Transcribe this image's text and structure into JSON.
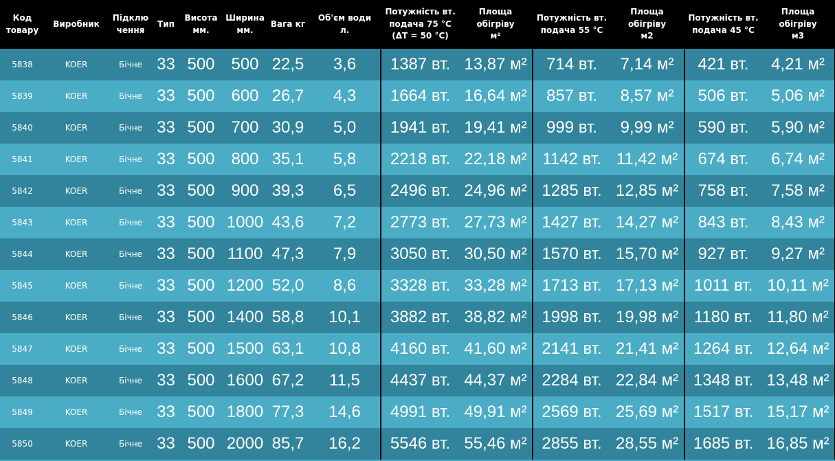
{
  "headers": [
    [
      "Код",
      "товару"
    ],
    [
      "Виробник"
    ],
    [
      "Підклю",
      "чення"
    ],
    [
      "Тип"
    ],
    [
      "Висота",
      "мм."
    ],
    [
      "Ширина",
      "мм."
    ],
    [
      "Вага кг"
    ],
    [
      "Об'єм води",
      "л."
    ],
    [
      "Потужність вт.",
      "подача 75 °C",
      "(ΔT = 50 °C)"
    ],
    [
      "Площа обігріву",
      "м²"
    ],
    [
      "Потужність вт.",
      "подача 55 °C"
    ],
    [
      "Площа обігріву",
      "м2"
    ],
    [
      "Потужність вт.",
      "подача 45 °C"
    ],
    [
      "Площа обігріву",
      "м3"
    ]
  ],
  "rows": [
    [
      "5838",
      "KOER",
      "Бічне",
      "33",
      "500",
      "500",
      "22,5",
      "3,6",
      "1387 вт.",
      "13,87 м²",
      "714 вт.",
      "7,14 м²",
      "421 вт.",
      "4,21 м²"
    ],
    [
      "5839",
      "KOER",
      "Бічне",
      "33",
      "500",
      "600",
      "26,7",
      "4,3",
      "1664 вт.",
      "16,64 м²",
      "857 вт.",
      "8,57 м²",
      "506 вт.",
      "5,06 м²"
    ],
    [
      "5840",
      "KOER",
      "Бічне",
      "33",
      "500",
      "700",
      "30,9",
      "5,0",
      "1941 вт.",
      "19,41 м²",
      "999 вт.",
      "9,99 м²",
      "590 вт.",
      "5,90 м²"
    ],
    [
      "5841",
      "KOER",
      "Бічне",
      "33",
      "500",
      "800",
      "35,1",
      "5,8",
      "2218 вт.",
      "22,18 м²",
      "1142 вт.",
      "11,42 м²",
      "674 вт.",
      "6,74 м²"
    ],
    [
      "5842",
      "KOER",
      "Бічне",
      "33",
      "500",
      "900",
      "39,3",
      "6,5",
      "2496 вт.",
      "24,96 м²",
      "1285 вт.",
      "12,85 м²",
      "758 вт.",
      "7,58 м²"
    ],
    [
      "5843",
      "KOER",
      "Бічне",
      "33",
      "500",
      "1000",
      "43,6",
      "7,2",
      "2773 вт.",
      "27,73 м²",
      "1427 вт.",
      "14,27 м²",
      "843 вт.",
      "8,43 м²"
    ],
    [
      "5844",
      "KOER",
      "Бічне",
      "33",
      "500",
      "1100",
      "47,3",
      "7,9",
      "3050 вт.",
      "30,50 м²",
      "1570 вт.",
      "15,70 м²",
      "927 вт.",
      "9,27 м²"
    ],
    [
      "5845",
      "KOER",
      "Бічне",
      "33",
      "500",
      "1200",
      "52,0",
      "8,6",
      "3328 вт.",
      "33,28 м²",
      "1713 вт.",
      "17,13 м²",
      "1011 вт.",
      "10,11 м²"
    ],
    [
      "5846",
      "KOER",
      "Бічне",
      "33",
      "500",
      "1400",
      "58,8",
      "10,1",
      "3882 вт.",
      "38,82 м²",
      "1998 вт.",
      "19,98 м²",
      "1180 вт.",
      "11,80 м²"
    ],
    [
      "5847",
      "KOER",
      "Бічне",
      "33",
      "500",
      "1500",
      "63,1",
      "10,8",
      "4160 вт.",
      "41,60 м²",
      "2141 вт.",
      "21,41 м²",
      "1264 вт.",
      "12,64 м²"
    ],
    [
      "5848",
      "KOER",
      "Бічне",
      "33",
      "500",
      "1600",
      "67,2",
      "11,5",
      "4437 вт.",
      "44,37 м²",
      "2284 вт.",
      "22,84 м²",
      "1348 вт.",
      "13,48 м²"
    ],
    [
      "5849",
      "KOER",
      "Бічне",
      "33",
      "500",
      "1800",
      "77,3",
      "14,6",
      "4991 вт.",
      "49,91 м²",
      "2569 вт.",
      "25,69 м²",
      "1517 вт.",
      "15,17 м²"
    ],
    [
      "5850",
      "KOER",
      "Бічне",
      "33",
      "500",
      "2000",
      "85,7",
      "16,2",
      "5546 вт.",
      "55,46 м²",
      "2855 вт.",
      "28,55 м²",
      "1685 вт.",
      "16,85 м²"
    ]
  ]
}
